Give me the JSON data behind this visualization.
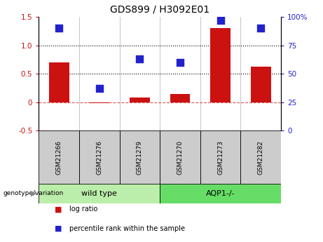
{
  "title": "GDS899 / H3092E01",
  "categories": [
    "GSM21266",
    "GSM21276",
    "GSM21279",
    "GSM21270",
    "GSM21273",
    "GSM21282"
  ],
  "log_ratio": [
    0.7,
    -0.02,
    0.08,
    0.14,
    1.3,
    0.62
  ],
  "percentile_rank": [
    90,
    37,
    63,
    60,
    97,
    90
  ],
  "bar_color": "#cc1111",
  "dot_color": "#2222cc",
  "left_ylim": [
    -0.5,
    1.5
  ],
  "right_ylim": [
    0,
    100
  ],
  "left_yticks": [
    -0.5,
    0,
    0.5,
    1.0,
    1.5
  ],
  "right_yticks": [
    0,
    25,
    50,
    75,
    100
  ],
  "right_yticklabels": [
    "0",
    "25",
    "50",
    "75",
    "100%"
  ],
  "hline_y": [
    0.5,
    1.0
  ],
  "zero_line_y": 0,
  "groups": [
    {
      "label": "wild type",
      "indices": [
        0,
        1,
        2
      ],
      "color": "#bbeeaa"
    },
    {
      "label": "AQP1-/-",
      "indices": [
        3,
        4,
        5
      ],
      "color": "#66dd66"
    }
  ],
  "group_label": "genotype/variation",
  "legend_items": [
    {
      "label": "log ratio",
      "color": "#cc1111"
    },
    {
      "label": "percentile rank within the sample",
      "color": "#2222cc"
    }
  ],
  "bar_width": 0.5,
  "dot_size": 45,
  "background_color": "#ffffff",
  "plot_bg_color": "#ffffff",
  "tick_bg_color": "#cccccc",
  "separator_color": "#999999"
}
